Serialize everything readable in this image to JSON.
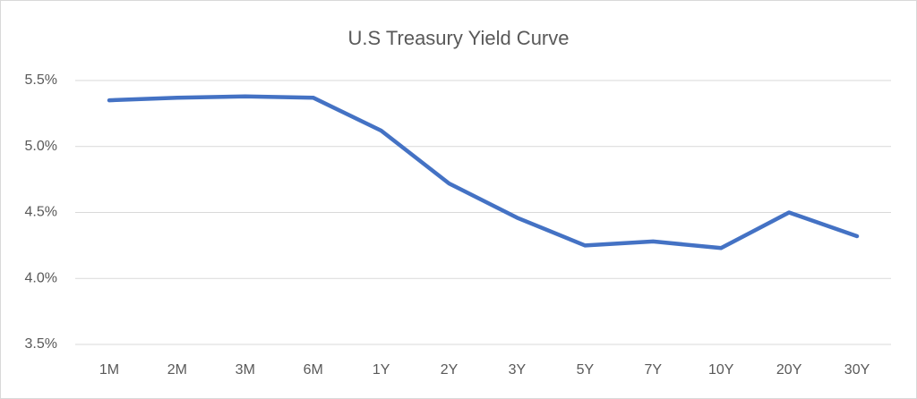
{
  "chart_data": {
    "type": "line",
    "title": "U.S Treasury Yield Curve",
    "categories": [
      "1M",
      "2M",
      "3M",
      "6M",
      "1Y",
      "2Y",
      "3Y",
      "5Y",
      "7Y",
      "10Y",
      "20Y",
      "30Y"
    ],
    "series": [
      {
        "color": "#4472c4",
        "values": [
          5.35,
          5.37,
          5.38,
          5.37,
          5.12,
          4.72,
          4.46,
          4.25,
          4.28,
          4.23,
          4.5,
          4.32
        ]
      }
    ],
    "ylim": [
      3.5,
      5.5
    ],
    "yticks": [
      {
        "value": 3.5,
        "label": "3.5%"
      },
      {
        "value": 4.0,
        "label": "4.0%"
      },
      {
        "value": 4.5,
        "label": "4.5%"
      },
      {
        "value": 5.0,
        "label": "5.0%"
      },
      {
        "value": 5.5,
        "label": "5.5%"
      }
    ],
    "grid": true
  }
}
